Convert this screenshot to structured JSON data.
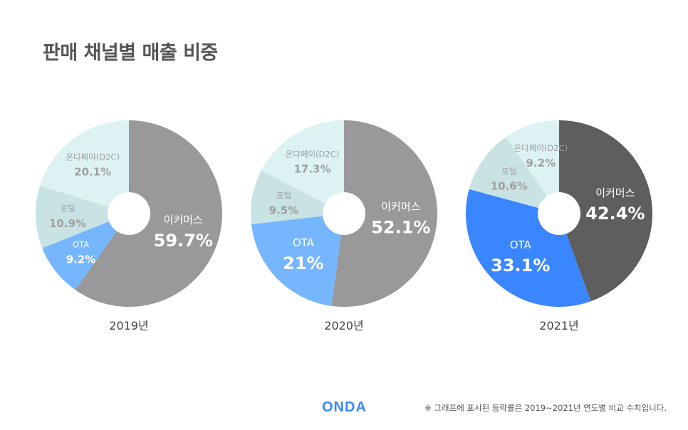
{
  "title": "판매 채널별 매출 비중",
  "logo": "ONDA",
  "footnote": "※ 그래프에 표시된 등락률은 2019~2021년 연도별 비교 수치입니다.",
  "chart_data": [
    {
      "type": "pie",
      "year_label": "2019년",
      "slices": [
        {
          "label": "이커머스",
          "value": 59.7,
          "value_label": "59.7%",
          "color": "#999999",
          "text_color": "#ffffff",
          "size": "large"
        },
        {
          "label": "OTA",
          "value": 9.2,
          "value_label": "9.2%",
          "color": "#76b6ff",
          "text_color": "#ffffff",
          "size": "small"
        },
        {
          "label": "포털",
          "value": 10.9,
          "value_label": "10.9%",
          "color": "#c9e3e4",
          "text_color": "#a0a0a0",
          "size": "small"
        },
        {
          "label": "온다페이(D2C)",
          "value": 20.1,
          "value_label": "20.1%",
          "color": "#dcf2f3",
          "text_color": "#a0a0a0",
          "size": "small"
        }
      ]
    },
    {
      "type": "pie",
      "year_label": "2020년",
      "slices": [
        {
          "label": "이커머스",
          "value": 52.1,
          "value_label": "52.1%",
          "color": "#999999",
          "text_color": "#ffffff",
          "size": "large"
        },
        {
          "label": "OTA",
          "value": 21,
          "value_label": "21%",
          "color": "#76b6ff",
          "text_color": "#ffffff",
          "size": "large"
        },
        {
          "label": "포털",
          "value": 9.5,
          "value_label": "9.5%",
          "color": "#c9e3e4",
          "text_color": "#a0a0a0",
          "size": "small"
        },
        {
          "label": "온다페이(D2C)",
          "value": 17.3,
          "value_label": "17.3%",
          "color": "#dcf2f3",
          "text_color": "#a0a0a0",
          "size": "small"
        }
      ]
    },
    {
      "type": "pie",
      "year_label": "2021년",
      "slices": [
        {
          "label": "이커머스",
          "value": 42.4,
          "value_label": "42.4%",
          "color": "#5e5e5e",
          "text_color": "#ffffff",
          "size": "large"
        },
        {
          "label": "OTA",
          "value": 33.1,
          "value_label": "33.1%",
          "color": "#3a86ff",
          "text_color": "#ffffff",
          "size": "large"
        },
        {
          "label": "포털",
          "value": 10.6,
          "value_label": "10.6%",
          "color": "#c9e3e4",
          "text_color": "#a0a0a0",
          "size": "small"
        },
        {
          "label": "온다페이(D2C)",
          "value": 9.2,
          "value_label": "9.2%",
          "color": "#dcf2f3",
          "text_color": "#a0a0a0",
          "size": "small"
        }
      ]
    }
  ]
}
